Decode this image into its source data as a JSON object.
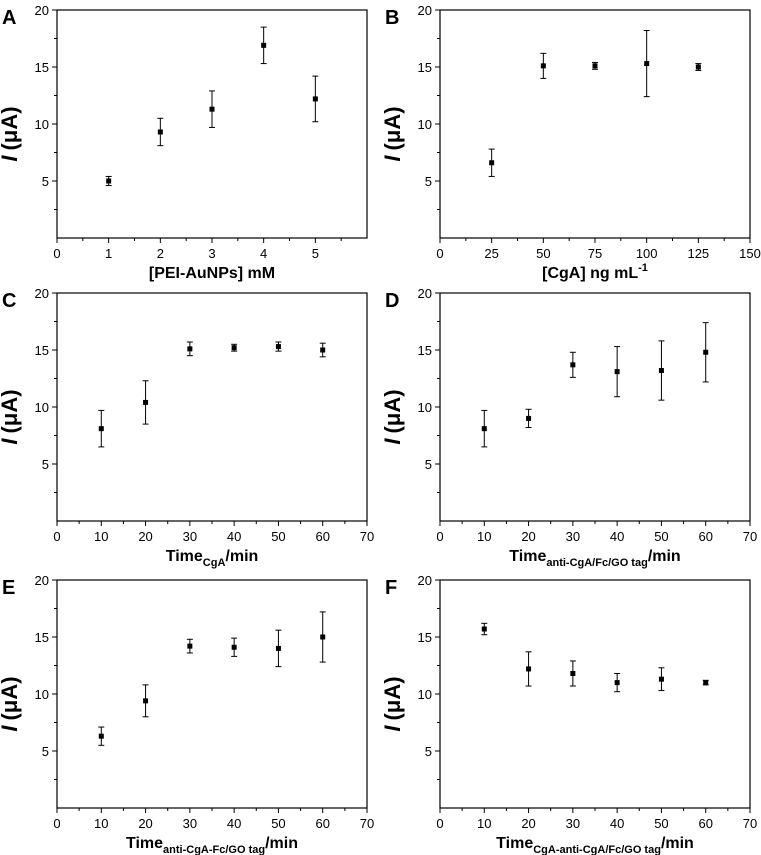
{
  "chart_data": [
    {
      "type": "scatter",
      "panel": "A",
      "xlabel": "[PEI-AuNPs] mM",
      "ylabel_main": "I",
      "ylabel_unit": "(μA)",
      "xlim": [
        0,
        6
      ],
      "ylim": [
        0,
        20
      ],
      "xticks": [
        0,
        1,
        2,
        3,
        4,
        5
      ],
      "yticks": [
        5,
        10,
        15,
        20
      ],
      "x": [
        1,
        2,
        3,
        4,
        5
      ],
      "y": [
        5.0,
        9.3,
        11.3,
        16.9,
        12.2
      ],
      "err": [
        0.4,
        1.2,
        1.6,
        1.6,
        2.0
      ]
    },
    {
      "type": "scatter",
      "panel": "B",
      "xlabel": "[CgA] ng mL",
      "xlabel_sup": "-1",
      "ylabel_main": "I",
      "ylabel_unit": "(μA)",
      "xlim": [
        0,
        150
      ],
      "ylim": [
        0,
        20
      ],
      "xticks": [
        0,
        25,
        50,
        75,
        100,
        125,
        150
      ],
      "yticks": [
        5,
        10,
        15,
        20
      ],
      "x": [
        25,
        50,
        75,
        100,
        125
      ],
      "y": [
        6.6,
        15.1,
        15.1,
        15.3,
        15.0
      ],
      "err": [
        1.2,
        1.1,
        0.3,
        2.9,
        0.3
      ]
    },
    {
      "type": "scatter",
      "panel": "C",
      "xlabel": "Time",
      "xlabel_sub": "CgA",
      "xlabel_suffix": "/min",
      "ylabel_main": "I",
      "ylabel_unit": "(μA)",
      "xlim": [
        0,
        70
      ],
      "ylim": [
        0,
        20
      ],
      "xticks": [
        0,
        10,
        20,
        30,
        40,
        50,
        60,
        70
      ],
      "yticks": [
        5,
        10,
        15,
        20
      ],
      "x": [
        10,
        20,
        30,
        40,
        50,
        60
      ],
      "y": [
        8.1,
        10.4,
        15.1,
        15.2,
        15.3,
        15.0
      ],
      "err": [
        1.6,
        1.9,
        0.6,
        0.3,
        0.4,
        0.6
      ]
    },
    {
      "type": "scatter",
      "panel": "D",
      "xlabel": "Time",
      "xlabel_sub": "anti-CgA/Fc/GO tag",
      "xlabel_suffix": "/min",
      "ylabel_main": "I",
      "ylabel_unit": "(μA)",
      "xlim": [
        0,
        70
      ],
      "ylim": [
        0,
        20
      ],
      "xticks": [
        0,
        10,
        20,
        30,
        40,
        50,
        60,
        70
      ],
      "yticks": [
        5,
        10,
        15,
        20
      ],
      "x": [
        10,
        20,
        30,
        40,
        50,
        60
      ],
      "y": [
        8.1,
        9.0,
        13.7,
        13.1,
        13.2,
        14.8
      ],
      "err": [
        1.6,
        0.8,
        1.1,
        2.2,
        2.6,
        2.6
      ]
    },
    {
      "type": "scatter",
      "panel": "E",
      "xlabel": "Time",
      "xlabel_sub": "anti-CgA-Fc/GO tag",
      "xlabel_suffix": "/min",
      "ylabel_main": "I",
      "ylabel_unit": "(μA)",
      "xlim": [
        0,
        70
      ],
      "ylim": [
        0,
        20
      ],
      "xticks": [
        0,
        10,
        20,
        30,
        40,
        50,
        60,
        70
      ],
      "yticks": [
        5,
        10,
        15,
        20
      ],
      "x": [
        10,
        20,
        30,
        40,
        50,
        60
      ],
      "y": [
        6.3,
        9.4,
        14.2,
        14.1,
        14.0,
        15.0
      ],
      "err": [
        0.8,
        1.4,
        0.6,
        0.8,
        1.6,
        2.2
      ]
    },
    {
      "type": "scatter",
      "panel": "F",
      "xlabel": "Time",
      "xlabel_sub": "CgA-anti-CgA/Fc/GO tag",
      "xlabel_suffix": "/min",
      "ylabel_main": "I",
      "ylabel_unit": "(μA)",
      "xlim": [
        0,
        70
      ],
      "ylim": [
        0,
        20
      ],
      "xticks": [
        0,
        10,
        20,
        30,
        40,
        50,
        60,
        70
      ],
      "yticks": [
        5,
        10,
        15,
        20
      ],
      "x": [
        10,
        20,
        30,
        40,
        50,
        60
      ],
      "y": [
        15.7,
        12.2,
        11.8,
        11.0,
        11.3,
        11.0
      ],
      "err": [
        0.5,
        1.5,
        1.1,
        0.8,
        1.0,
        0.2
      ]
    }
  ]
}
